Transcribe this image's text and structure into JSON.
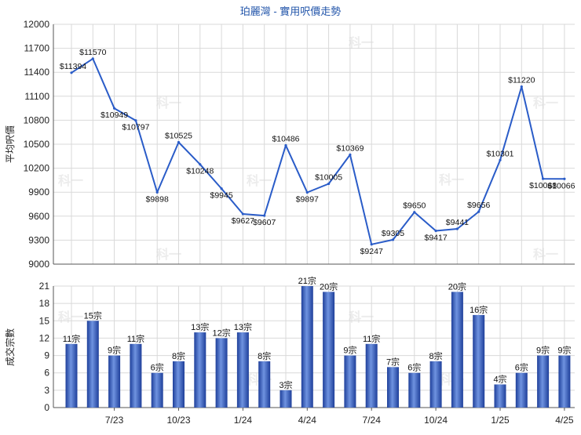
{
  "chart_data": [
    {
      "type": "line",
      "title": "珀麗灣 - 實用呎價走勢",
      "ylabel": "平均呎價",
      "ylim": [
        9000,
        12000
      ],
      "yticks": [
        9000,
        9300,
        9600,
        9900,
        10200,
        10500,
        10800,
        11100,
        11400,
        11700,
        12000
      ],
      "series": [
        {
          "values": [
            11394,
            11570,
            10949,
            10797,
            9898,
            10525,
            10248,
            9945,
            9627,
            9607,
            10486,
            9897,
            10005,
            10369,
            9247,
            9305,
            9650,
            9417,
            9441,
            9656,
            10301,
            11220,
            10068,
            10066
          ],
          "labels": [
            "$11394",
            "$11570",
            "$10949",
            "$10797",
            "$9898",
            "$10525",
            "$10248",
            "$9945",
            "$9627",
            "$9607",
            "$10486",
            "$9897",
            "$10005",
            "$10369",
            "$9247",
            "$9305",
            "$9650",
            "$9417",
            "$9441",
            "$9656",
            "$10301",
            "$11220",
            "$10068",
            "$10066"
          ]
        }
      ],
      "line_color": "#2a5cc8",
      "grid": true
    },
    {
      "type": "bar",
      "ylabel": "成交宗數",
      "ylim": [
        0,
        21
      ],
      "yticks": [
        0,
        3,
        6,
        9,
        12,
        15,
        18,
        21
      ],
      "values": [
        11,
        15,
        9,
        11,
        6,
        8,
        13,
        12,
        13,
        8,
        3,
        21,
        20,
        9,
        11,
        7,
        6,
        8,
        20,
        16,
        4,
        6,
        9,
        9
      ],
      "labels": [
        "11宗",
        "15宗",
        "9宗",
        "11宗",
        "6宗",
        "8宗",
        "13宗",
        "12宗",
        "13宗",
        "8宗",
        "3宗",
        "21宗",
        "20宗",
        "9宗",
        "11宗",
        "7宗",
        "6宗",
        "8宗",
        "20宗",
        "16宗",
        "4宗",
        "6宗",
        "9宗",
        "9宗"
      ],
      "x_tick_labels": [
        "7/23",
        "10/23",
        "1/24",
        "4/24",
        "7/24",
        "10/24",
        "1/25",
        "4/25"
      ],
      "bar_color": "#3b63c4",
      "grid": true
    }
  ],
  "watermark": "科一"
}
